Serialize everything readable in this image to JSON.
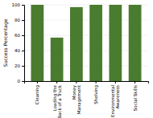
{
  "chart_data": {
    "type": "bar",
    "categories": [
      "Cleaning",
      "Loading the\nBack of a Truck",
      "Money\nManagement",
      "Shelving",
      "Environmental\nAwareness",
      "Social Skills"
    ],
    "values": [
      100,
      57,
      97,
      100,
      100,
      100
    ],
    "color": "#4a7c2f",
    "ylabel": "Success Percentage",
    "ylim": [
      0,
      100
    ],
    "yticks": [
      0,
      20,
      40,
      60,
      80,
      100
    ],
    "grid": true
  }
}
